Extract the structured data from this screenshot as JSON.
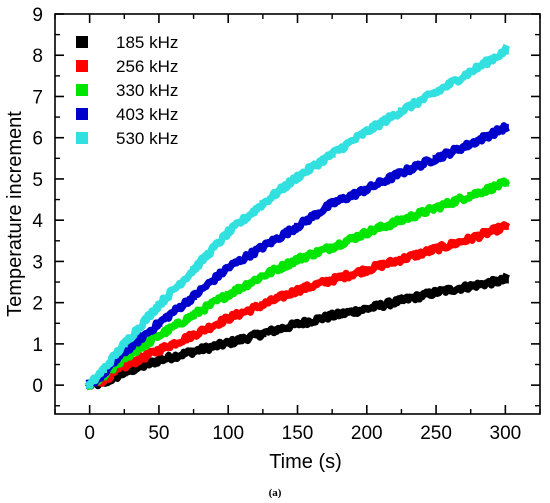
{
  "chart_data": {
    "type": "line",
    "title": "",
    "xlabel": "Time (s)",
    "ylabel": "Temperature increment",
    "xlim": [
      -25,
      325
    ],
    "ylim": [
      -0.7,
      9
    ],
    "xticks": [
      0,
      50,
      100,
      150,
      200,
      250,
      300
    ],
    "yticks": [
      0,
      1,
      2,
      3,
      4,
      5,
      6,
      7,
      8,
      9
    ],
    "grid": false,
    "legend_position": "top-left",
    "caption": "(a)",
    "x": [
      0,
      10,
      25,
      50,
      75,
      100,
      125,
      150,
      175,
      200,
      225,
      250,
      275,
      300
    ],
    "series": [
      {
        "name": "185 kHz",
        "color": "#000000",
        "values": [
          0,
          0.05,
          0.3,
          0.6,
          0.82,
          1.02,
          1.25,
          1.48,
          1.68,
          1.85,
          2.05,
          2.25,
          2.4,
          2.55
        ]
      },
      {
        "name": "256 kHz",
        "color": "#ff0000",
        "values": [
          0,
          0.12,
          0.45,
          0.85,
          1.22,
          1.62,
          1.95,
          2.3,
          2.55,
          2.8,
          3.05,
          3.3,
          3.55,
          3.85
        ]
      },
      {
        "name": "330 kHz",
        "color": "#00e600",
        "values": [
          0,
          0.2,
          0.65,
          1.2,
          1.7,
          2.2,
          2.65,
          3.05,
          3.35,
          3.7,
          4.0,
          4.3,
          4.6,
          4.9
        ]
      },
      {
        "name": "403 kHz",
        "color": "#0000cc",
        "values": [
          0,
          0.28,
          0.8,
          1.5,
          2.15,
          2.85,
          3.35,
          3.85,
          4.4,
          4.75,
          5.15,
          5.5,
          5.85,
          6.25
        ]
      },
      {
        "name": "530 kHz",
        "color": "#33e0e0",
        "values": [
          0,
          0.38,
          1.0,
          1.95,
          2.8,
          3.7,
          4.4,
          5.05,
          5.6,
          6.15,
          6.65,
          7.1,
          7.6,
          8.1
        ]
      }
    ]
  }
}
